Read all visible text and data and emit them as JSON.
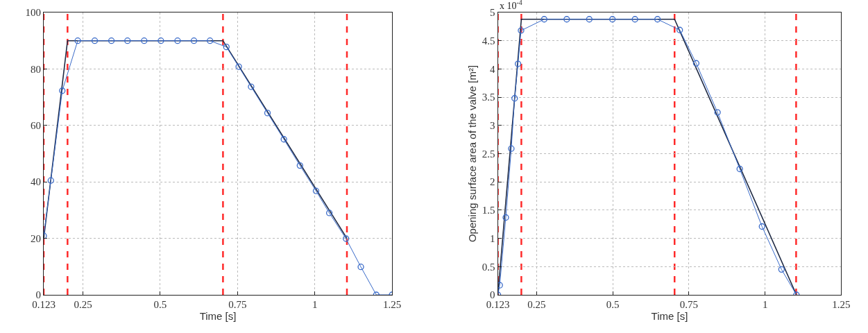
{
  "chart_data": [
    {
      "type": "line",
      "xlabel": "Time [s]",
      "xlim": [
        0.123,
        1.25
      ],
      "xticks": [
        0.123,
        0.25,
        0.5,
        0.75,
        1,
        1.25
      ],
      "ylim": [
        0,
        100
      ],
      "yticks": [
        0,
        20,
        40,
        60,
        80,
        100
      ],
      "grid": true,
      "series": [
        {
          "color": "#1f2a44",
          "marker": "none",
          "x": [
            0.123,
            0.2,
            0.703,
            1.104
          ],
          "values": [
            20,
            90,
            90,
            20
          ]
        },
        {
          "color": "#3a6bc9",
          "marker": "circle",
          "x": [
            0.123,
            0.146,
            0.183,
            0.233,
            0.288,
            0.342,
            0.394,
            0.448,
            0.502,
            0.556,
            0.609,
            0.661,
            0.714,
            0.754,
            0.794,
            0.847,
            0.9,
            0.952,
            1.004,
            1.047,
            1.101,
            1.149,
            1.199,
            1.25
          ],
          "values": [
            20.9,
            40.5,
            72.3,
            90,
            90,
            90,
            90,
            90,
            90,
            90,
            90,
            90,
            87.8,
            80.8,
            73.7,
            64.4,
            55.1,
            45.8,
            36.8,
            29,
            19.9,
            9.9,
            0,
            0
          ]
        }
      ],
      "ref_lines": [
        {
          "axis": "x",
          "value": 0.123,
          "color": "#ff2a2a",
          "line_style": "dashed"
        },
        {
          "axis": "x",
          "value": 0.2,
          "color": "#ff2a2a",
          "line_style": "dashed"
        },
        {
          "axis": "x",
          "value": 0.703,
          "color": "#ff2a2a",
          "line_style": "dashed"
        },
        {
          "axis": "x",
          "value": 1.104,
          "color": "#ff2a2a",
          "line_style": "dashed"
        }
      ]
    },
    {
      "type": "line",
      "xlabel": "Time [s]",
      "ylabel": "Opening surface area of the valve [m²]",
      "annotations": [
        "x 10$^{-4}$"
      ],
      "xlim": [
        0.123,
        1.25
      ],
      "xticks": [
        0.123,
        0.25,
        0.5,
        0.75,
        1,
        1.25
      ],
      "ylim": [
        0,
        5
      ],
      "yticks": [
        0,
        0.5,
        1,
        1.5,
        2,
        2.5,
        3,
        3.5,
        4,
        4.5,
        5
      ],
      "grid": true,
      "series": [
        {
          "color": "#1f2a44",
          "marker": "none",
          "x": [
            0.123,
            0.2,
            0.703,
            1.103
          ],
          "values": [
            0,
            4.88,
            4.88,
            0
          ]
        },
        {
          "color": "#3a6bc9",
          "marker": "circle",
          "x": [
            0.123,
            0.129,
            0.149,
            0.167,
            0.178,
            0.189,
            0.199,
            0.275,
            0.349,
            0.423,
            0.499,
            0.573,
            0.647,
            0.72,
            0.774,
            0.844,
            0.917,
            0.99,
            1.054,
            1.103
          ],
          "values": [
            0,
            0.17,
            1.37,
            2.59,
            3.48,
            4.09,
            4.68,
            4.88,
            4.88,
            4.88,
            4.88,
            4.88,
            4.88,
            4.69,
            4.1,
            3.23,
            2.23,
            1.21,
            0.45,
            0
          ]
        }
      ],
      "ref_lines": [
        {
          "axis": "x",
          "value": 0.123,
          "color": "#ff2a2a",
          "line_style": "dashed"
        },
        {
          "axis": "x",
          "value": 0.2,
          "color": "#ff2a2a",
          "line_style": "dashed"
        },
        {
          "axis": "x",
          "value": 0.703,
          "color": "#ff2a2a",
          "line_style": "dashed"
        },
        {
          "axis": "x",
          "value": 1.102,
          "color": "#ff2a2a",
          "line_style": "dashed"
        }
      ]
    }
  ]
}
